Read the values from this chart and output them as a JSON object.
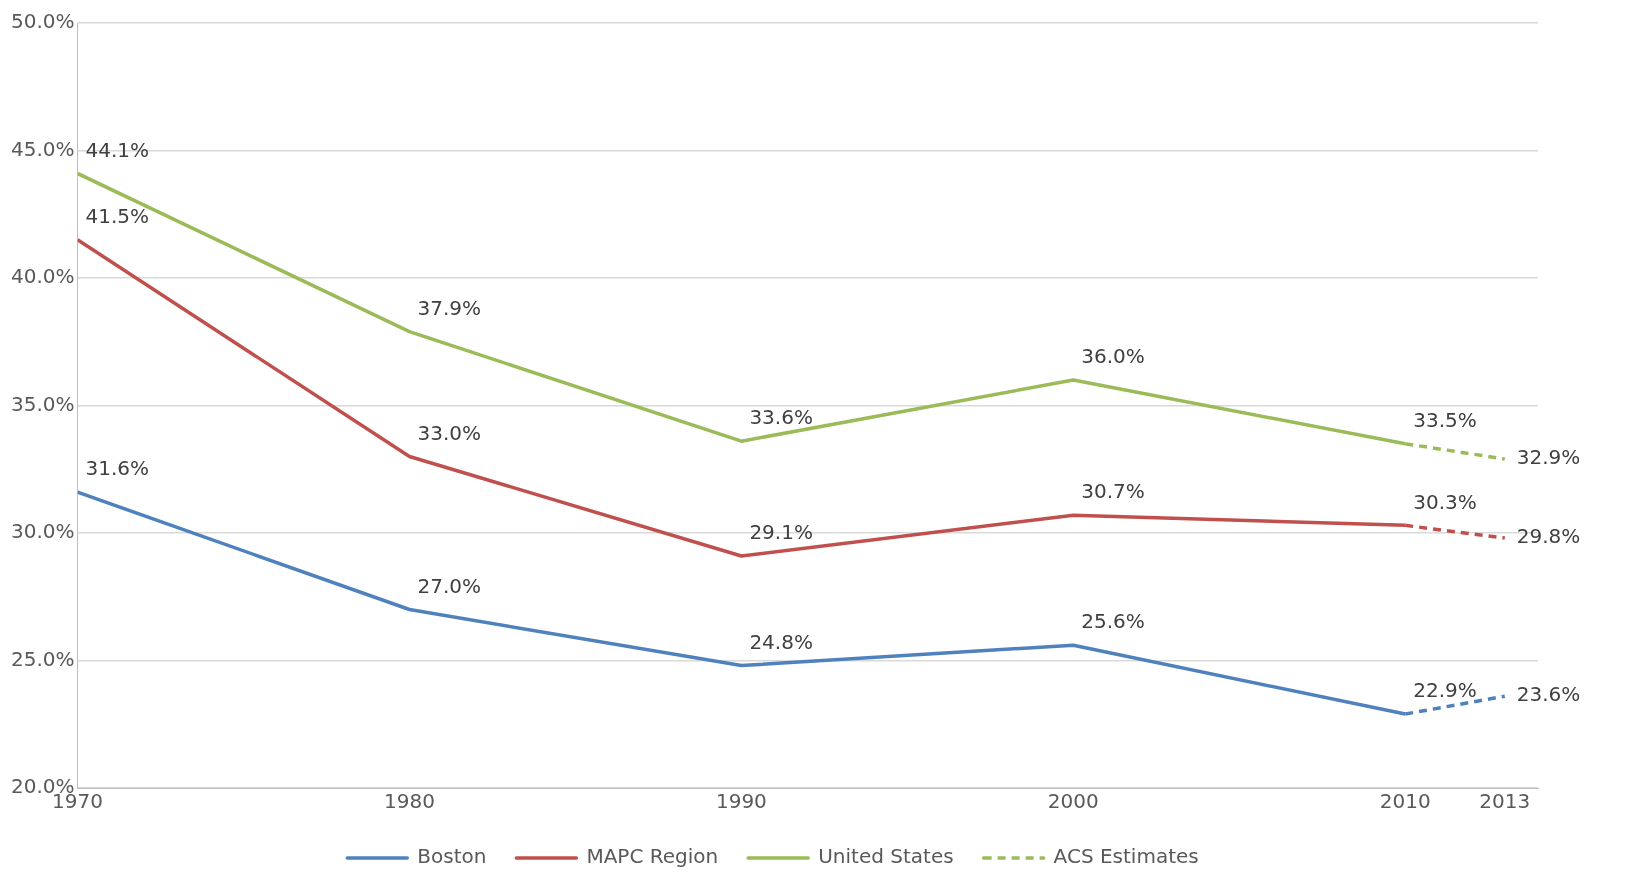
{
  "chart_data": {
    "type": "line",
    "xlim": [
      1970,
      2014
    ],
    "xticks": [
      1970,
      1980,
      1990,
      2000,
      2010,
      2013
    ],
    "ylim": [
      20,
      50
    ],
    "yticks": [
      {
        "value": 20,
        "label": "20.0%"
      },
      {
        "value": 25,
        "label": "25.0%"
      },
      {
        "value": 30,
        "label": "30.0%"
      },
      {
        "value": 35,
        "label": "35.0%"
      },
      {
        "value": 40,
        "label": "40.0%"
      },
      {
        "value": 45,
        "label": "45.0%"
      },
      {
        "value": 50,
        "label": "50.0%"
      }
    ],
    "grid": "y",
    "legend": "bottom",
    "marker": "none",
    "series": [
      {
        "name": "Boston",
        "color": "#4f81bd",
        "line_style": "solid",
        "x": [
          1970,
          1980,
          1990,
          2000,
          2010
        ],
        "values": [
          31.6,
          27.0,
          24.8,
          25.6,
          22.9
        ],
        "value_labels": [
          "31.6%",
          "27.0%",
          "24.8%",
          "25.6%",
          "22.9%"
        ]
      },
      {
        "name": "MAPC Region",
        "color": "#c0504d",
        "line_style": "solid",
        "x": [
          1970,
          1980,
          1990,
          2000,
          2010
        ],
        "values": [
          41.5,
          33.0,
          29.1,
          30.7,
          30.3
        ],
        "value_labels": [
          "41.5%",
          "33.0%",
          "29.1%",
          "30.7%",
          "30.3%"
        ]
      },
      {
        "name": "United States",
        "color": "#9bbb59",
        "line_style": "solid",
        "x": [
          1970,
          1980,
          1990,
          2000,
          2010
        ],
        "values": [
          44.1,
          37.9,
          33.6,
          36.0,
          33.5
        ],
        "value_labels": [
          "44.1%",
          "37.9%",
          "33.6%",
          "36.0%",
          "33.5%"
        ]
      },
      {
        "name": "ACS Estimates",
        "color": "#9bbb59",
        "line_style": "dashed",
        "x": [
          2010,
          2013
        ],
        "values": [
          33.5,
          32.9
        ],
        "value_labels": [
          null,
          "32.9%"
        ]
      },
      {
        "color": "#c0504d",
        "line_style": "dashed",
        "x": [
          2010,
          2013
        ],
        "values": [
          30.3,
          29.8
        ],
        "value_labels": [
          null,
          "29.8%"
        ]
      },
      {
        "color": "#4f81bd",
        "line_style": "dashed",
        "x": [
          2010,
          2013
        ],
        "values": [
          22.9,
          23.6
        ],
        "value_labels": [
          null,
          "23.6%"
        ]
      }
    ]
  }
}
